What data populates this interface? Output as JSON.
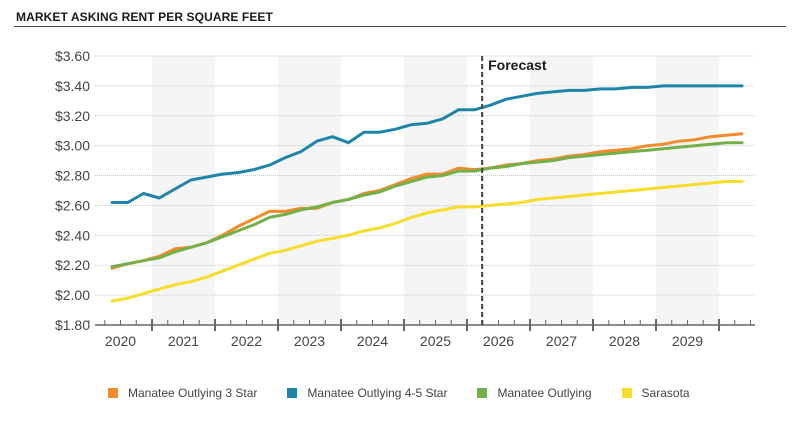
{
  "title": "MARKET ASKING RENT PER SQUARE FEET",
  "chart_data": {
    "type": "line",
    "title": "MARKET ASKING RENT PER SQUARE FEET",
    "xlabel": "",
    "ylabel": "",
    "ylim": [
      1.8,
      3.6
    ],
    "yticks": [
      "$1.80",
      "$2.00",
      "$2.20",
      "$2.40",
      "$2.60",
      "$2.80",
      "$3.00",
      "$3.20",
      "$3.40",
      "$3.60"
    ],
    "ytick_values": [
      1.8,
      2.0,
      2.2,
      2.4,
      2.6,
      2.8,
      3.0,
      3.2,
      3.4,
      3.6
    ],
    "year_labels": [
      "2020",
      "2021",
      "2022",
      "2023",
      "2024",
      "2025",
      "2026",
      "2027",
      "2028",
      "2029"
    ],
    "frequency": "quarterly",
    "start_period": "2020 Q1",
    "grid": true,
    "forecast_marker": {
      "label": "Forecast",
      "after_period_index": 23.5
    },
    "legend_position": "bottom",
    "series": [
      {
        "name": "Manatee Outlying 3 Star",
        "color": "#f28b2b",
        "values": [
          2.18,
          2.21,
          2.23,
          2.26,
          2.31,
          2.32,
          2.35,
          2.4,
          2.46,
          2.51,
          2.56,
          2.56,
          2.58,
          2.58,
          2.62,
          2.64,
          2.68,
          2.7,
          2.74,
          2.78,
          2.81,
          2.81,
          2.85,
          2.84,
          2.85,
          2.87,
          2.88,
          2.9,
          2.91,
          2.93,
          2.94,
          2.96,
          2.97,
          2.98,
          3.0,
          3.01,
          3.03,
          3.04,
          3.06,
          3.07,
          3.08
        ]
      },
      {
        "name": "Manatee Outlying 4-5 Star",
        "color": "#1f85a8",
        "values": [
          2.62,
          2.62,
          2.68,
          2.65,
          2.71,
          2.77,
          2.79,
          2.81,
          2.82,
          2.84,
          2.87,
          2.92,
          2.96,
          3.03,
          3.06,
          3.02,
          3.09,
          3.09,
          3.11,
          3.14,
          3.15,
          3.18,
          3.24,
          3.24,
          3.27,
          3.31,
          3.33,
          3.35,
          3.36,
          3.37,
          3.37,
          3.38,
          3.38,
          3.39,
          3.39,
          3.4,
          3.4,
          3.4,
          3.4,
          3.4,
          3.4
        ]
      },
      {
        "name": "Manatee Outlying",
        "color": "#74b04a",
        "values": [
          2.19,
          2.21,
          2.23,
          2.25,
          2.29,
          2.32,
          2.35,
          2.39,
          2.43,
          2.47,
          2.52,
          2.54,
          2.57,
          2.59,
          2.62,
          2.64,
          2.67,
          2.69,
          2.73,
          2.76,
          2.79,
          2.8,
          2.83,
          2.83,
          2.85,
          2.86,
          2.88,
          2.89,
          2.9,
          2.92,
          2.93,
          2.94,
          2.95,
          2.96,
          2.97,
          2.98,
          2.99,
          3.0,
          3.01,
          3.02,
          3.02
        ]
      },
      {
        "name": "Sarasota",
        "color": "#f6dd2a",
        "values": [
          1.96,
          1.98,
          2.01,
          2.04,
          2.07,
          2.09,
          2.12,
          2.16,
          2.2,
          2.24,
          2.28,
          2.3,
          2.33,
          2.36,
          2.38,
          2.4,
          2.43,
          2.45,
          2.48,
          2.52,
          2.55,
          2.57,
          2.59,
          2.59,
          2.6,
          2.61,
          2.62,
          2.64,
          2.65,
          2.66,
          2.67,
          2.68,
          2.69,
          2.7,
          2.71,
          2.72,
          2.73,
          2.74,
          2.75,
          2.76,
          2.76
        ]
      }
    ]
  },
  "legend": [
    {
      "label": "Manatee Outlying 3 Star",
      "color": "#f28b2b"
    },
    {
      "label": "Manatee Outlying 4-5 Star",
      "color": "#1f85a8"
    },
    {
      "label": "Manatee Outlying",
      "color": "#74b04a"
    },
    {
      "label": "Sarasota",
      "color": "#f6dd2a"
    }
  ]
}
